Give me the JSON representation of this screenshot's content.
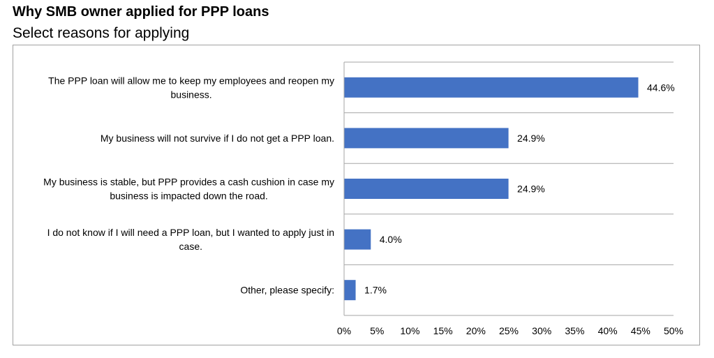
{
  "chart_data": {
    "type": "bar",
    "orientation": "horizontal",
    "title": "Why SMB owner applied for PPP loans",
    "subtitle": "Select reasons for applying",
    "categories": [
      [
        "The PPP loan will allow me to keep my employees and reopen my",
        "business."
      ],
      [
        "My business will not survive if I do not get a PPP loan."
      ],
      [
        "My business is stable, but PPP provides a cash cushion in case my",
        "business is impacted down the road."
      ],
      [
        "I do not know if I will need a PPP loan, but I wanted to apply just in",
        "case."
      ],
      [
        "Other, please specify:"
      ]
    ],
    "values": [
      44.6,
      24.9,
      24.9,
      4.0,
      1.7
    ],
    "value_labels": [
      "44.6%",
      "24.9%",
      "24.9%",
      "4.0%",
      "1.7%"
    ],
    "xlim": [
      0,
      50
    ],
    "x_ticks": [
      "0%",
      "5%",
      "10%",
      "15%",
      "20%",
      "25%",
      "30%",
      "35%",
      "40%",
      "45%",
      "50%"
    ],
    "grid": "horizontal-separators",
    "bar_color": "#4472C4",
    "grid_color": "#A6A6A6"
  }
}
